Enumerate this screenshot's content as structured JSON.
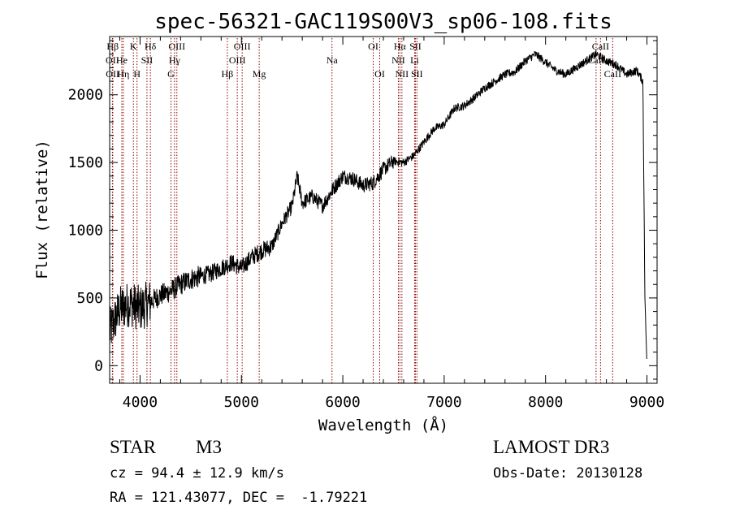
{
  "chart_data": {
    "type": "line",
    "title": "spec-56321-GAC119S00V3_sp06-108.fits",
    "xlabel": "Wavelength (Å)",
    "ylabel": "Flux (relative)",
    "xlim": [
      3700,
      9100
    ],
    "ylim": [
      -130,
      2430
    ],
    "x_ticks": [
      4000,
      5000,
      6000,
      7000,
      8000,
      9000
    ],
    "y_ticks": [
      0,
      500,
      1000,
      1500,
      2000
    ],
    "grid": false,
    "line_color": "#000000",
    "marker_color": "#8b0000",
    "series": [
      {
        "name": "spectrum",
        "x": [
          3700,
          3800,
          3900,
          4000,
          4100,
          4200,
          4300,
          4400,
          4500,
          4600,
          4700,
          4800,
          4900,
          5000,
          5100,
          5200,
          5300,
          5400,
          5500,
          5550,
          5600,
          5700,
          5800,
          5900,
          6000,
          6100,
          6200,
          6300,
          6400,
          6500,
          6600,
          6700,
          6800,
          6900,
          7000,
          7100,
          7200,
          7300,
          7400,
          7500,
          7600,
          7700,
          7800,
          7900,
          8000,
          8100,
          8200,
          8300,
          8400,
          8500,
          8600,
          8700,
          8800,
          8900,
          8960,
          8980,
          9000
        ],
        "y": [
          250,
          420,
          460,
          420,
          470,
          520,
          550,
          600,
          640,
          660,
          680,
          720,
          760,
          720,
          800,
          850,
          880,
          1050,
          1180,
          1400,
          1200,
          1250,
          1180,
          1300,
          1400,
          1380,
          1330,
          1350,
          1450,
          1510,
          1500,
          1550,
          1650,
          1750,
          1780,
          1900,
          1920,
          1980,
          2050,
          2100,
          2150,
          2170,
          2250,
          2300,
          2240,
          2180,
          2150,
          2200,
          2250,
          2300,
          2250,
          2220,
          2150,
          2180,
          2100,
          500,
          0
        ]
      }
    ],
    "line_markers": [
      {
        "label": "Hβ",
        "x": 3730,
        "row": 1
      },
      {
        "label": "K",
        "x": 3934,
        "row": 1
      },
      {
        "label": "Hδ",
        "x": 4102,
        "row": 1
      },
      {
        "label": "OIII",
        "x": 4363,
        "row": 1
      },
      {
        "label": "OIII",
        "x": 5007,
        "row": 1
      },
      {
        "label": "OI",
        "x": 6300,
        "row": 1
      },
      {
        "label": "Hα",
        "x": 6563,
        "row": 1
      },
      {
        "label": "SII",
        "x": 6716,
        "row": 1
      },
      {
        "label": "CaII",
        "x": 8542,
        "row": 1
      },
      {
        "label": "OII",
        "x": 3727,
        "row": 2
      },
      {
        "label": "He",
        "x": 3820,
        "row": 2
      },
      {
        "label": "SII",
        "x": 4068,
        "row": 2
      },
      {
        "label": "Hγ",
        "x": 4340,
        "row": 2
      },
      {
        "label": "OIII",
        "x": 4959,
        "row": 2
      },
      {
        "label": "Na",
        "x": 5893,
        "row": 2
      },
      {
        "label": "NII",
        "x": 6548,
        "row": 2
      },
      {
        "label": "Li",
        "x": 6708,
        "row": 2
      },
      {
        "label": "CaII",
        "x": 8498,
        "row": 2
      },
      {
        "label": "OII",
        "x": 3729,
        "row": 3
      },
      {
        "label": "Hη",
        "x": 3835,
        "row": 3
      },
      {
        "label": "H",
        "x": 3970,
        "row": 3
      },
      {
        "label": "G",
        "x": 4305,
        "row": 3
      },
      {
        "label": "Hβ",
        "x": 4861,
        "row": 3
      },
      {
        "label": "Mg",
        "x": 5175,
        "row": 3
      },
      {
        "label": "OI",
        "x": 6364,
        "row": 3
      },
      {
        "label": "NII",
        "x": 6583,
        "row": 3
      },
      {
        "label": "SII",
        "x": 6731,
        "row": 3
      },
      {
        "label": "CaII",
        "x": 8662,
        "row": 3
      }
    ]
  },
  "info": {
    "object_class": "STAR",
    "subclass": "M3",
    "survey": "LAMOST DR3",
    "redshift": "cz = 94.4 ± 12.9 km/s",
    "obs_date": "Obs-Date: 20130128",
    "coords": "RA = 121.43077, DEC =  -1.79221"
  }
}
